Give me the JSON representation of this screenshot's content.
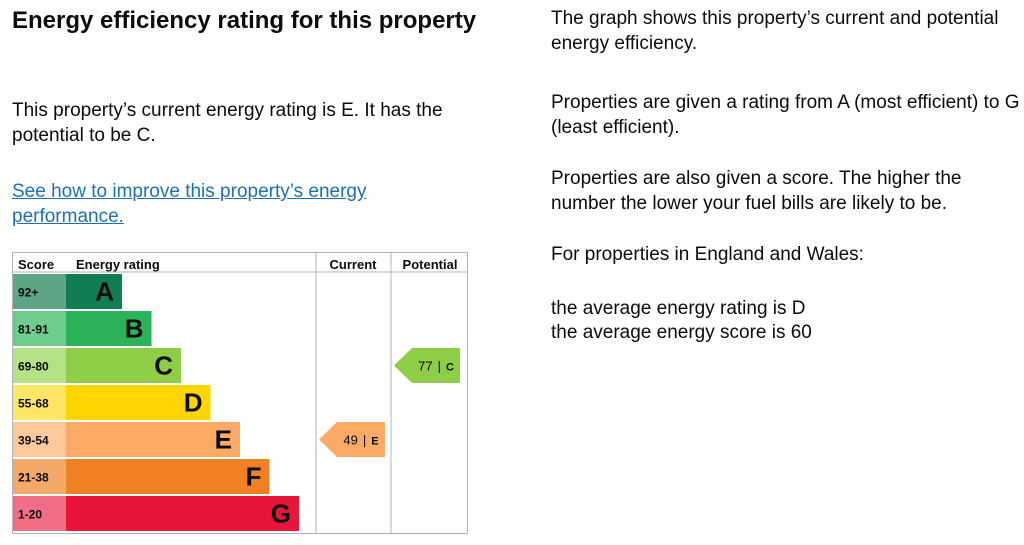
{
  "heading": "Energy efficiency rating for this property",
  "summary": "This property’s current energy rating is E. It has the potential to be C.",
  "improve_link": "See how to improve this property’s energy performance.",
  "right": {
    "p1": "The graph shows this property’s current and potential energy efficiency.",
    "p2": "Properties are given a rating from A (most efficient) to G (least efficient).",
    "p3": "Properties are also given a score. The higher the number the lower your fuel bills are likely to be.",
    "p4": "For properties in England and Wales:",
    "p5": "the average energy rating is D",
    "p6": "the average energy score is 60"
  },
  "chart_data": {
    "type": "table",
    "headers": {
      "score": "Score",
      "rating": "Energy rating",
      "current": "Current",
      "potential": "Potential"
    },
    "bands": [
      {
        "score": "92+",
        "letter": "A",
        "color": "#137e53",
        "score_bg": "#5da585"
      },
      {
        "score": "81-91",
        "letter": "B",
        "color": "#2cb35a",
        "score_bg": "#6ccd8c"
      },
      {
        "score": "69-80",
        "letter": "C",
        "color": "#8dce46",
        "score_bg": "#b7e187"
      },
      {
        "score": "55-68",
        "letter": "D",
        "color": "#ffd500",
        "score_bg": "#ffe566"
      },
      {
        "score": "39-54",
        "letter": "E",
        "color": "#fcaa65",
        "score_bg": "#fdc89c"
      },
      {
        "score": "21-38",
        "letter": "F",
        "color": "#ef8023",
        "score_bg": "#f4a96a"
      },
      {
        "score": "1-20",
        "letter": "G",
        "color": "#e9153b",
        "score_bg": "#f06e86"
      }
    ],
    "current": {
      "score": 49,
      "letter": "E",
      "band_index": 4,
      "color": "#fcaa65",
      "separator": "|"
    },
    "potential": {
      "score": 77,
      "letter": "C",
      "band_index": 2,
      "color": "#8dce46",
      "separator": "|"
    }
  }
}
